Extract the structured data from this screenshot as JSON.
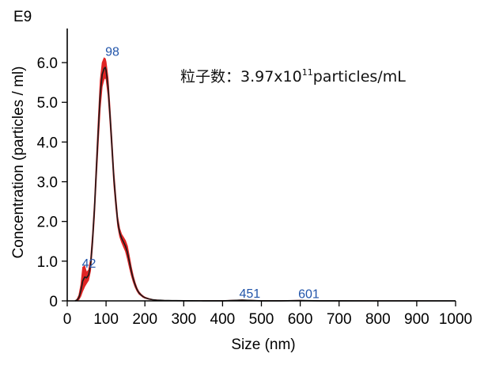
{
  "chart_data": {
    "type": "line",
    "xlabel": "Size (nm)",
    "ylabel": "Concentration (particles / ml)",
    "y_multiplier_label": "E9",
    "xlim": [
      0,
      1000
    ],
    "ylim": [
      0,
      6.5
    ],
    "x_ticks": [
      0,
      100,
      200,
      300,
      400,
      500,
      600,
      700,
      800,
      900,
      1000
    ],
    "y_ticks": [
      0,
      1.0,
      2.0,
      3.0,
      4.0,
      5.0,
      6.0
    ],
    "y_tick_labels": [
      "0",
      "1.0",
      "2.0",
      "3.0",
      "4.0",
      "5.0",
      "6.0"
    ],
    "grid": false,
    "annotation": {
      "prefix": "粒子数：3.97x10",
      "exponent": "11",
      "suffix": "particles/mL"
    },
    "peak_labels": [
      {
        "text": "42",
        "x": 42,
        "y": 0.6
      },
      {
        "text": "98",
        "x": 98,
        "y": 5.95
      },
      {
        "text": "451",
        "x": 451,
        "y": 0.02
      },
      {
        "text": "601",
        "x": 601,
        "y": 0.01
      }
    ],
    "series": [
      {
        "mean_color": "#1a1a1a",
        "band_color": "#e02424",
        "x": [
          20,
          25,
          30,
          35,
          40,
          45,
          50,
          55,
          60,
          65,
          70,
          75,
          80,
          85,
          90,
          95,
          98,
          100,
          105,
          110,
          115,
          120,
          125,
          130,
          135,
          140,
          145,
          150,
          155,
          160,
          165,
          170,
          175,
          180,
          185,
          190,
          195,
          200,
          210,
          220,
          230,
          240,
          250,
          260,
          270,
          280,
          300,
          320,
          350,
          400,
          450,
          500,
          550,
          600,
          650,
          700,
          800,
          900,
          1000
        ],
        "mean": [
          0.0,
          0.02,
          0.08,
          0.25,
          0.5,
          0.6,
          0.58,
          0.65,
          0.9,
          1.5,
          2.3,
          3.3,
          4.3,
          5.2,
          5.7,
          5.85,
          5.88,
          5.8,
          5.4,
          4.7,
          3.9,
          3.1,
          2.5,
          2.0,
          1.72,
          1.58,
          1.48,
          1.38,
          1.22,
          0.98,
          0.75,
          0.55,
          0.4,
          0.28,
          0.2,
          0.15,
          0.11,
          0.08,
          0.05,
          0.03,
          0.02,
          0.015,
          0.01,
          0.008,
          0.006,
          0.005,
          0.004,
          0.003,
          0.002,
          0.002,
          0.02,
          0.002,
          0.002,
          0.01,
          0.001,
          0.001,
          0.0,
          0.0,
          0.0
        ],
        "upper": [
          0.0,
          0.04,
          0.14,
          0.4,
          0.85,
          0.88,
          0.72,
          0.78,
          1.05,
          1.68,
          2.5,
          3.55,
          4.6,
          5.55,
          6.0,
          6.12,
          6.1,
          6.02,
          5.62,
          4.9,
          4.1,
          3.28,
          2.65,
          2.12,
          1.82,
          1.68,
          1.6,
          1.52,
          1.38,
          1.12,
          0.86,
          0.63,
          0.46,
          0.32,
          0.23,
          0.17,
          0.13,
          0.095,
          0.06,
          0.036,
          0.025,
          0.018,
          0.012,
          0.01,
          0.007,
          0.006,
          0.005,
          0.004,
          0.003,
          0.003,
          0.025,
          0.003,
          0.003,
          0.013,
          0.002,
          0.002,
          0.001,
          0.001,
          0.0
        ],
        "lower": [
          0.0,
          0.0,
          0.03,
          0.12,
          0.25,
          0.36,
          0.44,
          0.52,
          0.76,
          1.33,
          2.1,
          3.05,
          4.0,
          4.85,
          5.4,
          5.58,
          5.62,
          5.58,
          5.18,
          4.5,
          3.7,
          2.92,
          2.35,
          1.88,
          1.62,
          1.48,
          1.36,
          1.25,
          1.06,
          0.84,
          0.64,
          0.47,
          0.34,
          0.24,
          0.17,
          0.13,
          0.09,
          0.065,
          0.04,
          0.024,
          0.015,
          0.012,
          0.008,
          0.006,
          0.005,
          0.004,
          0.003,
          0.002,
          0.001,
          0.001,
          0.015,
          0.001,
          0.001,
          0.007,
          0.0,
          0.0,
          0.0,
          0.0,
          0.0
        ]
      }
    ]
  }
}
